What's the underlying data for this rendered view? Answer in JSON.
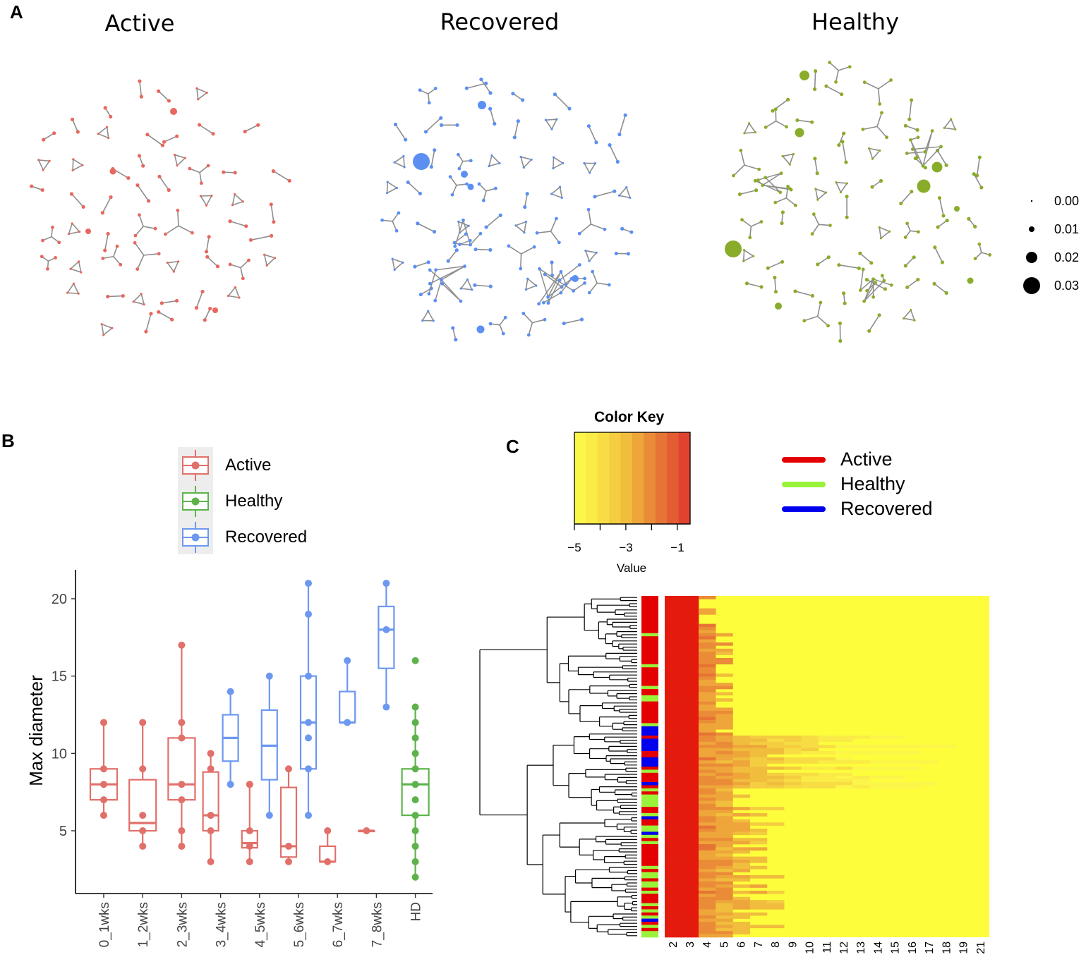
{
  "panels": {
    "a": "A",
    "b": "B",
    "c": "C"
  },
  "colors": {
    "active": "#e8675e",
    "recovered": "#5b8ff2",
    "healthy": "#8aac2b",
    "edge": "#8d8d8d",
    "box_active": "#e1706a",
    "box_healthy": "#5db34a",
    "box_recovered": "#6d98f0",
    "heat_active": "#e40000",
    "heat_healthy": "#9af23a",
    "heat_recovered": "#0000ee"
  },
  "chart_data": [
    {
      "type": "network",
      "panel": "A",
      "networks": [
        {
          "title": "Active",
          "color_key": "active"
        },
        {
          "title": "Recovered",
          "color_key": "recovered"
        },
        {
          "title": "Healthy",
          "color_key": "healthy"
        }
      ],
      "size_legend": {
        "values": [
          0.0,
          0.01,
          0.02,
          0.03
        ],
        "labels": [
          "0.00",
          "0.01",
          "0.02",
          "0.03"
        ]
      }
    },
    {
      "type": "box",
      "panel": "B",
      "title": "",
      "ylabel": "Max diameter",
      "xlabel": "",
      "ylim": [
        1.5,
        22
      ],
      "yticks": [
        5,
        10,
        15,
        20
      ],
      "ytick_labels": [
        "5",
        "10",
        "15",
        "20"
      ],
      "legend": [
        {
          "label": "Active",
          "color_key": "box_active"
        },
        {
          "label": "Healthy",
          "color_key": "box_healthy"
        },
        {
          "label": "Recovered",
          "color_key": "box_recovered"
        }
      ],
      "categories": [
        "0_1wks",
        "1_2wks",
        "2_3wks",
        "3_4wks",
        "4_5wks",
        "5_6wks",
        "6_7wks",
        "7_8wks",
        "HD"
      ],
      "boxes": [
        {
          "category": "0_1wks",
          "group": "Active",
          "min": 6,
          "q1": 7,
          "median": 8,
          "q3": 9,
          "max": 12,
          "points": [
            6,
            7,
            8,
            9,
            12
          ]
        },
        {
          "category": "1_2wks",
          "group": "Active",
          "min": 4,
          "q1": 5,
          "median": 5.5,
          "q3": 8.3,
          "max": 12,
          "points": [
            4,
            5,
            6,
            9,
            12
          ]
        },
        {
          "category": "2_3wks",
          "group": "Active",
          "min": 4,
          "q1": 7,
          "median": 8,
          "q3": 11,
          "max": 17,
          "points": [
            4,
            5,
            7,
            8,
            11,
            12,
            17
          ]
        },
        {
          "category": "3_4wks",
          "group": "Active",
          "min": 3,
          "q1": 5,
          "median": 6,
          "q3": 8.8,
          "max": 10,
          "points": [
            3,
            5,
            6,
            9,
            10
          ]
        },
        {
          "category": "3_4wks",
          "group": "Recovered",
          "min": 8,
          "q1": 9.5,
          "median": 11,
          "q3": 12.5,
          "max": 14,
          "points": [
            8,
            14
          ]
        },
        {
          "category": "4_5wks",
          "group": "Active",
          "min": 3,
          "q1": 3.9,
          "median": 4.2,
          "q3": 5,
          "max": 8,
          "points": [
            3,
            4,
            5,
            8,
            8
          ]
        },
        {
          "category": "4_5wks",
          "group": "Recovered",
          "min": 6,
          "q1": 8.3,
          "median": 10.5,
          "q3": 12.8,
          "max": 15,
          "points": [
            6,
            15
          ]
        },
        {
          "category": "5_6wks",
          "group": "Active",
          "min": 3,
          "q1": 3.3,
          "median": 4,
          "q3": 7.8,
          "max": 9,
          "points": [
            3,
            4,
            9
          ]
        },
        {
          "category": "5_6wks",
          "group": "Recovered",
          "min": 6,
          "q1": 9,
          "median": 12,
          "q3": 15,
          "max": 21,
          "points": [
            6,
            9,
            11,
            12,
            15,
            19,
            21
          ]
        },
        {
          "category": "6_7wks",
          "group": "Active",
          "min": 3,
          "q1": 3,
          "median": 3,
          "q3": 4,
          "max": 5,
          "points": [
            3,
            5
          ]
        },
        {
          "category": "6_7wks",
          "group": "Recovered",
          "min": 12,
          "q1": 12,
          "median": 12,
          "q3": 14,
          "max": 16,
          "points": [
            12,
            16
          ]
        },
        {
          "category": "7_8wks",
          "group": "Active",
          "min": 5,
          "q1": 5,
          "median": 5,
          "q3": 5,
          "max": 5,
          "points": [
            5
          ]
        },
        {
          "category": "7_8wks",
          "group": "Recovered",
          "min": 13,
          "q1": 15.5,
          "median": 18,
          "q3": 19.5,
          "max": 21,
          "points": [
            13,
            18,
            21
          ]
        },
        {
          "category": "HD",
          "group": "Healthy",
          "min": 2,
          "q1": 6,
          "median": 8,
          "q3": 9,
          "max": 13,
          "points": [
            2,
            3,
            4,
            5,
            6,
            7,
            8,
            9,
            10,
            11,
            12,
            13,
            16
          ]
        }
      ]
    },
    {
      "type": "heatmap",
      "panel": "C",
      "color_key": {
        "title": "Color Key",
        "xlabel": "Value",
        "range": [
          -5,
          -0.5
        ],
        "ticks": [
          -5,
          -3,
          -1
        ],
        "tick_labels": [
          "−5",
          "−3",
          "−1"
        ]
      },
      "row_legend": [
        {
          "label": "Active",
          "color_key": "heat_active"
        },
        {
          "label": "Healthy",
          "color_key": "heat_healthy"
        },
        {
          "label": "Recovered",
          "color_key": "heat_recovered"
        }
      ],
      "columns": [
        "2",
        "3",
        "4",
        "5",
        "6",
        "7",
        "8",
        "9",
        "10",
        "11",
        "12",
        "13",
        "14",
        "15",
        "16",
        "17",
        "18",
        "19",
        "21"
      ]
    }
  ]
}
